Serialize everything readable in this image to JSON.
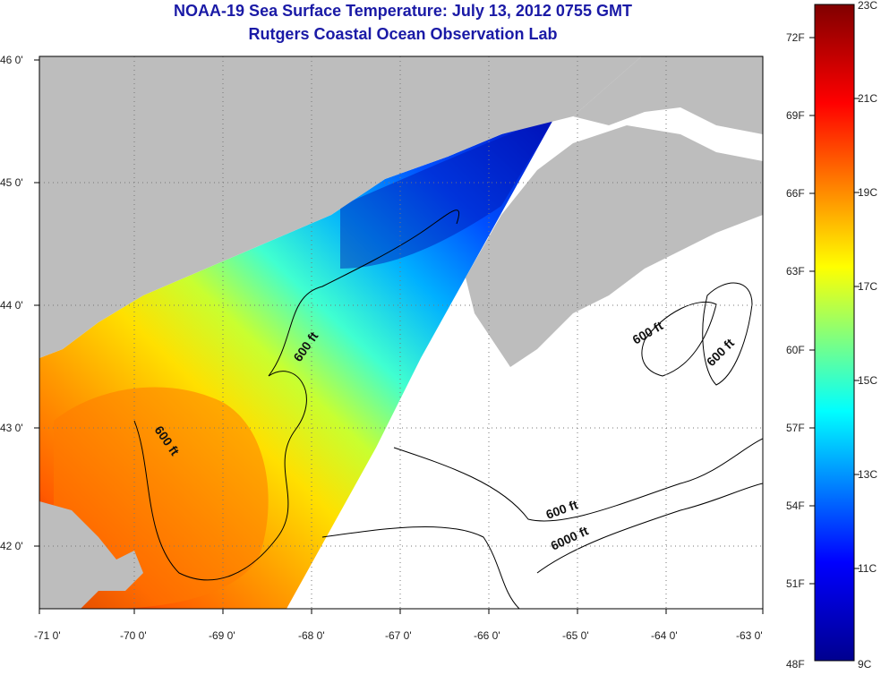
{
  "title": "NOAA-19 Sea Surface Temperature:  July 13, 2012 0755 GMT",
  "subtitle": "Rutgers Coastal Ocean Observation Lab",
  "map": {
    "lon_ticks": [
      "-71 0'",
      "-70 0'",
      "-69 0'",
      "-68 0'",
      "-67 0'",
      "-66 0'",
      "-65 0'",
      "-64 0'",
      "-63 0'"
    ],
    "lat_ticks": [
      "46 0'",
      "45 0'",
      "44 0'",
      "43 0'",
      "42 0'"
    ],
    "contour_labels": [
      "600 ft",
      "600 ft",
      "600 ft",
      "600 ft",
      "600 ft",
      "6000 ft"
    ],
    "colors": {
      "land": "#bdbdbd",
      "no_data": "#ffffff",
      "grid": "#777777"
    }
  },
  "colorbar": {
    "f_labels": [
      "72F",
      "69F",
      "66F",
      "63F",
      "60F",
      "57F",
      "54F",
      "51F",
      "48F"
    ],
    "c_labels": [
      "23C",
      "21C",
      "19C",
      "17C",
      "15C",
      "13C",
      "11C",
      "9C"
    ],
    "min_c": 9,
    "max_c": 23,
    "stops": [
      "#00008f",
      "#0000ff",
      "#00ffff",
      "#ffff00",
      "#ff0000",
      "#800000"
    ]
  }
}
